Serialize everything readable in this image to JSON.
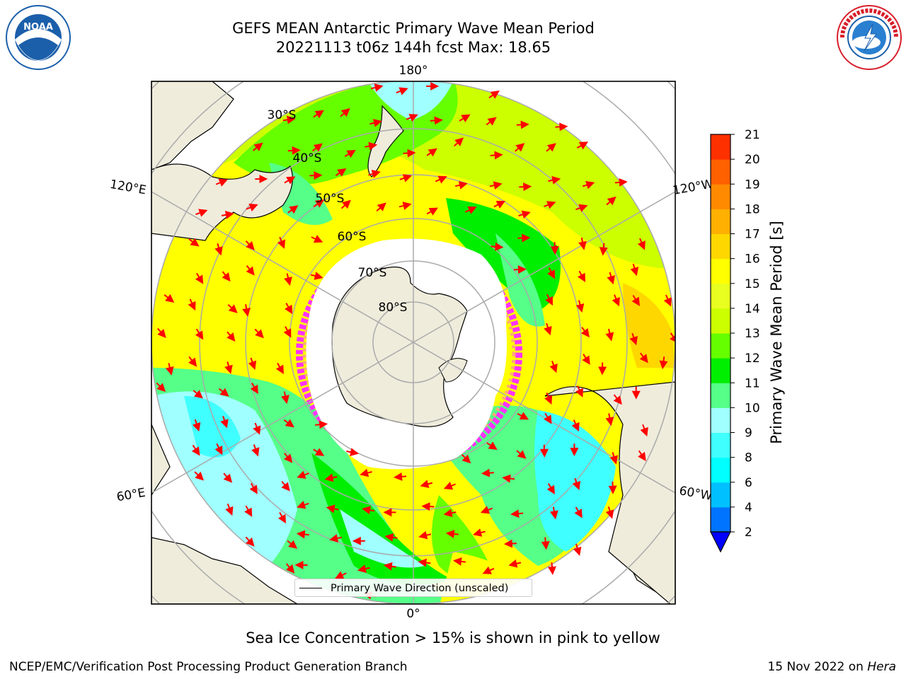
{
  "title": {
    "line1": "GEFS MEAN Antarctic Primary Wave Mean Period",
    "line2": "20221113 t06z 144h fcst   Max: 18.65"
  },
  "logos": {
    "left": "noaa-logo",
    "right": "nws-logo",
    "colors": {
      "noaa_blue": "#1b5faa",
      "nws_red": "#d81e2a"
    }
  },
  "map": {
    "projection": "south-polar-stereographic",
    "meridian_labels": {
      "top": "180°",
      "bottom": "0°",
      "left_upper": "120°E",
      "right_upper": "120°W",
      "left_lower": "60°E",
      "right_lower": "60°W"
    },
    "parallel_labels": [
      "30°S",
      "40°S",
      "50°S",
      "60°S",
      "70°S",
      "80°S"
    ],
    "land_color": "#efecdc",
    "ice_colors": [
      "#ff33ff",
      "#ffaa77",
      "#ffff66"
    ]
  },
  "colorbar": {
    "label": "Primary Wave Mean Period [s]",
    "ticks": [
      "2",
      "4",
      "6",
      "8",
      "9",
      "10",
      "11",
      "12",
      "13",
      "14",
      "15",
      "16",
      "17",
      "18",
      "19",
      "20",
      "21"
    ],
    "colors": [
      "#0073ff",
      "#00c0ff",
      "#00ffff",
      "#40ffff",
      "#a0ffff",
      "#55ff88",
      "#00ee00",
      "#66ff00",
      "#ccff00",
      "#e8ff20",
      "#ffff00",
      "#ffd700",
      "#ffb000",
      "#ff8a00",
      "#ff6000",
      "#ff3000",
      "#ff0000"
    ],
    "under_color": "#0000ff"
  },
  "legend": {
    "label": "Primary Wave Direction (unscaled)",
    "arrow_color": "#ff0000"
  },
  "note": "Sea Ice Concentration > 15% is shown in pink to yellow",
  "footer": {
    "left": "NCEP/EMC/Verification Post Processing Product Generation Branch",
    "right_date": "15 Nov 2022 on ",
    "right_host": "Hera"
  }
}
